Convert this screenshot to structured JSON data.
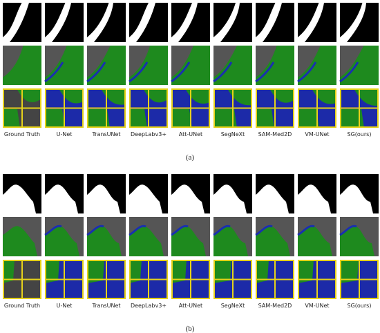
{
  "panels": [
    {
      "caption": "(a)",
      "columns": [
        "Ground Truth",
        "U-Net",
        "TransUNet",
        "DeepLabv3+",
        "Att-UNet",
        "SegNeXt",
        "SAM-Med2D",
        "VM-UNet",
        "SG(ours)"
      ]
    },
    {
      "caption": "(b)",
      "columns": [
        "Ground Truth",
        "U-Net",
        "TransUNet",
        "DeepLabv3+",
        "Att-UNet",
        "SegNeXt",
        "SAM-Med2D",
        "VM-UNet",
        "SG(ours)"
      ]
    }
  ]
}
